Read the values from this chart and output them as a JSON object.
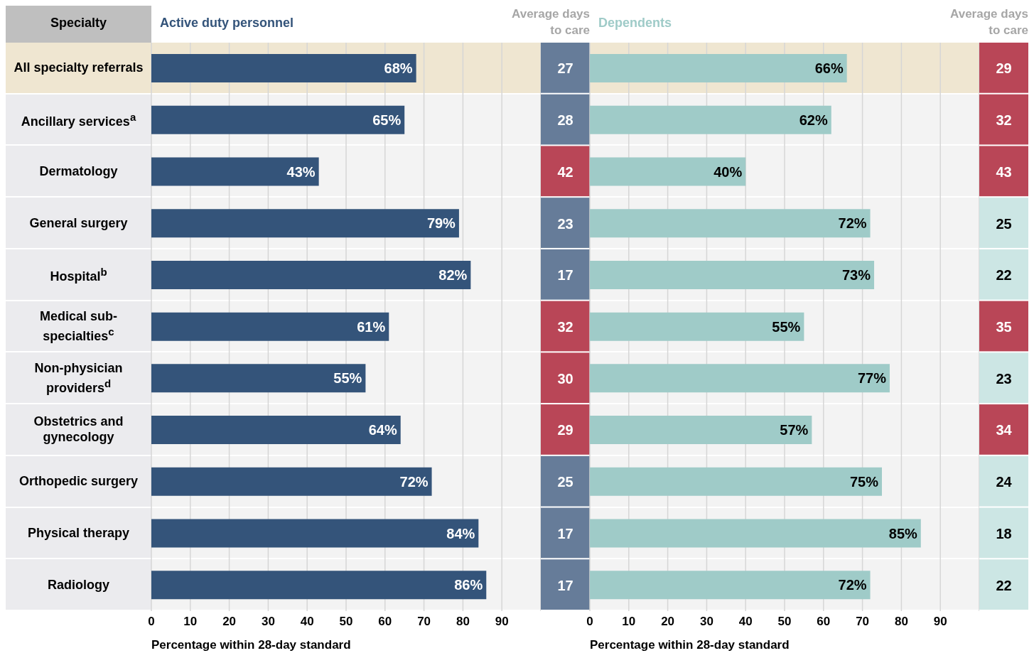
{
  "chart_data": [
    {
      "type": "bar",
      "orientation": "horizontal",
      "title": "Active duty personnel",
      "ylabel": "Specialty",
      "xlabel": "Percentage within 28-day standard",
      "categories": [
        "All specialty referrals",
        "Ancillary services$^{a}$",
        "Dermatology",
        "General surgery",
        "Hospital$^{b}$",
        "Medical sub-specialties$^{c}$",
        "Non-physician providers$^{d}$",
        "Obstetrics and gynecology",
        "Orthopedic surgery",
        "Physical therapy",
        "Radiology"
      ],
      "values": [
        68,
        65,
        43,
        79,
        82,
        61,
        55,
        64,
        72,
        84,
        86
      ],
      "value_labels": [
        "68%",
        "65%",
        "43%",
        "79%",
        "82%",
        "61%",
        "55%",
        "64%",
        "72%",
        "84%",
        "86%"
      ],
      "color": "#34547a",
      "xlim": [
        0,
        100
      ],
      "xticks": [
        0,
        10,
        20,
        30,
        40,
        50,
        60,
        70,
        80,
        90
      ],
      "grid": "x",
      "bands": [
        {
          "axis": "y",
          "from": "All specialty referrals",
          "to": "All specialty referrals",
          "color": "#efe6d1"
        }
      ]
    },
    {
      "type": "other",
      "title": "Average days to care",
      "data_labels": true,
      "values": [
        27,
        28,
        42,
        23,
        17,
        32,
        30,
        29,
        25,
        17,
        17
      ],
      "colors": [
        "#667c99",
        "#667c99",
        "#b94657",
        "#667c99",
        "#667c99",
        "#b94657",
        "#b94657",
        "#b94657",
        "#667c99",
        "#667c99",
        "#667c99"
      ]
    },
    {
      "type": "bar",
      "orientation": "horizontal",
      "title": "Dependents",
      "xlabel": "Percentage within 28-day standard",
      "tick_labels": "x",
      "categories": [
        "All specialty referrals",
        "Ancillary services$^{a}$",
        "Dermatology",
        "General surgery",
        "Hospital$^{b}$",
        "Medical sub-specialties$^{c}$",
        "Non-physician providers$^{d}$",
        "Obstetrics and gynecology",
        "Orthopedic surgery",
        "Physical therapy",
        "Radiology"
      ],
      "values": [
        66,
        62,
        40,
        72,
        73,
        55,
        77,
        57,
        75,
        85,
        72
      ],
      "value_labels": [
        "66%",
        "62%",
        "40%",
        "72%",
        "73%",
        "55%",
        "77%",
        "57%",
        "75%",
        "85%",
        "72%"
      ],
      "color": "#9fcbc8",
      "xlim": [
        0,
        100
      ],
      "xticks": [
        0,
        10,
        20,
        30,
        40,
        50,
        60,
        70,
        80,
        90
      ],
      "grid": "x",
      "bands": [
        {
          "axis": "y",
          "from": "All specialty referrals",
          "to": "All specialty referrals",
          "color": "#efe6d1"
        }
      ]
    },
    {
      "type": "other",
      "title": "Average days to care",
      "data_labels": true,
      "values": [
        29,
        32,
        43,
        25,
        22,
        35,
        23,
        34,
        24,
        18,
        22
      ],
      "colors": [
        "#b94657",
        "#b94657",
        "#b94657",
        "#cce6e4",
        "#cce6e4",
        "#b94657",
        "#cce6e4",
        "#b94657",
        "#cce6e4",
        "#cce6e4",
        "#cce6e4"
      ]
    }
  ]
}
